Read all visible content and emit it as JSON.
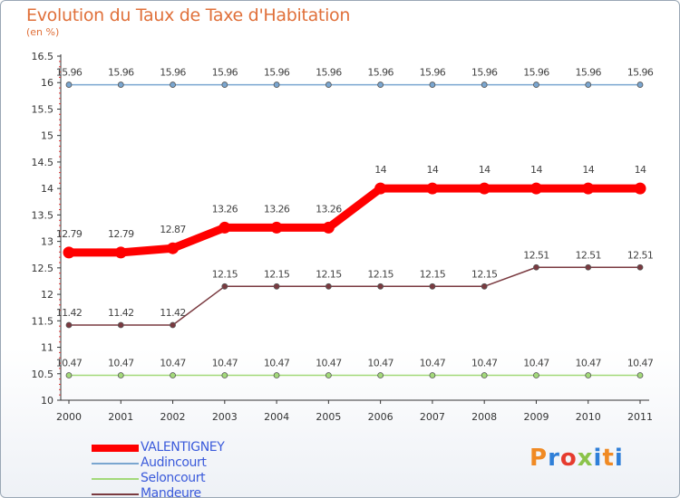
{
  "header": {
    "title": "Evolution du Taux de Taxe d'Habitation",
    "unit": "(en %)"
  },
  "logo": {
    "text": "Proxiti",
    "colors": [
      "#f08a24",
      "#2f7fd8",
      "#e63b2e",
      "#8bc34a",
      "#2f7fd8",
      "#f08a24",
      "#2f7fd8"
    ]
  },
  "chart_data": {
    "type": "line",
    "categories": [
      "2000",
      "2001",
      "2002",
      "2003",
      "2004",
      "2005",
      "2006",
      "2007",
      "2008",
      "2009",
      "2010",
      "2011"
    ],
    "ylim": [
      10,
      16.5
    ],
    "yticks": [
      "10",
      "10.5",
      "11",
      "11.5",
      "12",
      "12.5",
      "13",
      "13.5",
      "14",
      "14.5",
      "15",
      "15.5",
      "16",
      "16.5"
    ],
    "grid": false,
    "legend_position": "bottom-left",
    "series": [
      {
        "name": "VALENTIGNEY",
        "color": "#ff0000",
        "emphasis": true,
        "values": [
          12.79,
          12.79,
          12.87,
          13.26,
          13.26,
          13.26,
          14,
          14,
          14,
          14,
          14,
          14
        ],
        "labels": [
          "12.79",
          "12.79",
          "12.87",
          "13.26",
          "13.26",
          "13.26",
          "14",
          "14",
          "14",
          "14",
          "14",
          "14"
        ]
      },
      {
        "name": "Audincourt",
        "color": "#7aa6d0",
        "values": [
          15.96,
          15.96,
          15.96,
          15.96,
          15.96,
          15.96,
          15.96,
          15.96,
          15.96,
          15.96,
          15.96,
          15.96
        ],
        "labels": [
          "15.96",
          "15.96",
          "15.96",
          "15.96",
          "15.96",
          "15.96",
          "15.96",
          "15.96",
          "15.96",
          "15.96",
          "15.96",
          "15.96"
        ]
      },
      {
        "name": "Seloncourt",
        "color": "#a3d97a",
        "values": [
          10.47,
          10.47,
          10.47,
          10.47,
          10.47,
          10.47,
          10.47,
          10.47,
          10.47,
          10.47,
          10.47,
          10.47
        ],
        "labels": [
          "10.47",
          "10.47",
          "10.47",
          "10.47",
          "10.47",
          "10.47",
          "10.47",
          "10.47",
          "10.47",
          "10.47",
          "10.47",
          "10.47"
        ]
      },
      {
        "name": "Mandeure",
        "color": "#7a3a40",
        "values": [
          11.42,
          11.42,
          11.42,
          12.15,
          12.15,
          12.15,
          12.15,
          12.15,
          12.15,
          12.51,
          12.51,
          12.51
        ],
        "labels": [
          "11.42",
          "11.42",
          "11.42",
          "12.15",
          "12.15",
          "12.15",
          "12.15",
          "12.15",
          "12.15",
          "12.51",
          "12.51",
          "12.51"
        ]
      }
    ]
  }
}
